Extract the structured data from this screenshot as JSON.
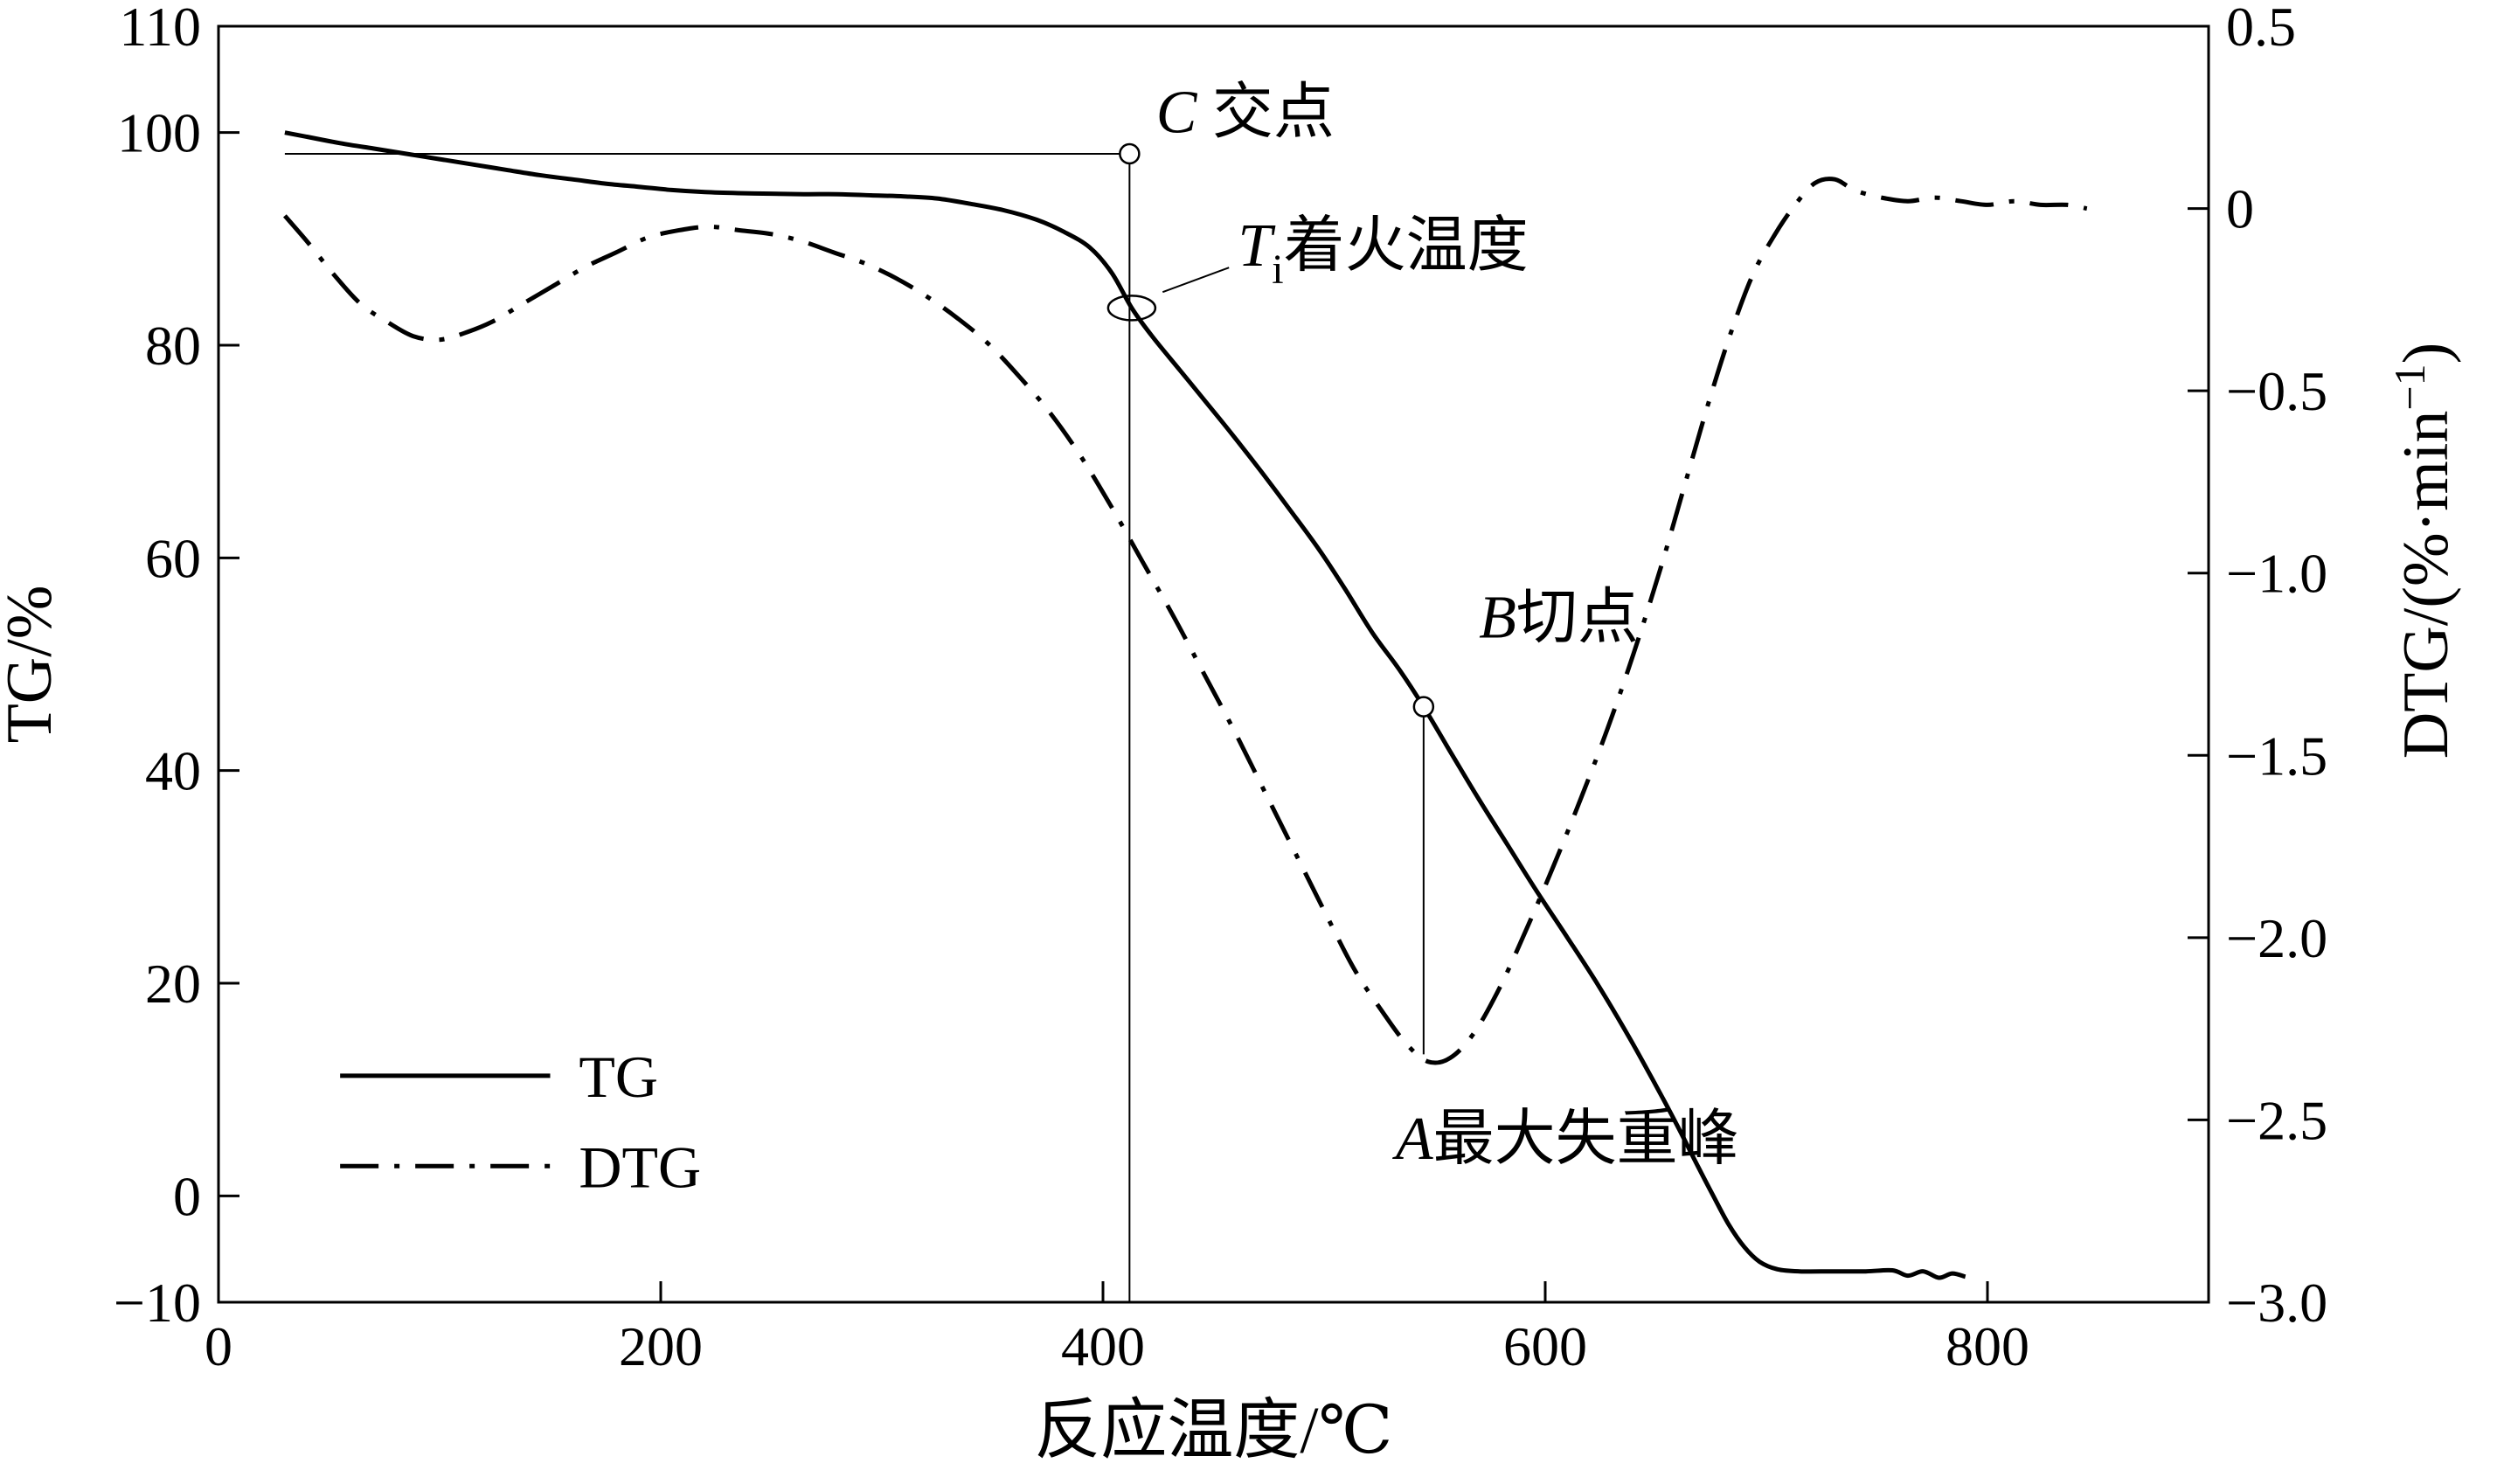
{
  "colors": {
    "line": "#000000",
    "background": "#ffffff"
  },
  "chart_data": {
    "type": "line",
    "title": "",
    "xlabel": "反应温度/℃",
    "ylabel_left": "TG/%",
    "ylabel_right": "DTG/(%·min−1)",
    "legend_position": "lower-left-inside",
    "grid": false,
    "x_axis": {
      "min": 0,
      "max": 900,
      "ticks": [
        0,
        200,
        400,
        600,
        800
      ],
      "tick_labels": [
        "0",
        "200",
        "400",
        "600",
        "800"
      ],
      "title": "反应温度/℃"
    },
    "y_left": {
      "min": -10,
      "max": 110,
      "ticks": [
        110,
        100,
        80,
        60,
        40,
        20,
        0,
        -10
      ],
      "tick_labels": [
        "110",
        "100",
        "80",
        "60",
        "40",
        "20",
        "0",
        "−10"
      ],
      "title": "TG/%"
    },
    "y_right": {
      "min": -3.0,
      "max": 0.5,
      "ticks": [
        0.5,
        0,
        -0.5,
        -1.0,
        -1.5,
        -2.0,
        -2.5,
        -3.0
      ],
      "tick_labels": [
        "0.5",
        "0",
        "−0.5",
        "−1.0",
        "−1.5",
        "−2.0",
        "−2.5",
        "−3.0"
      ],
      "title_parts": [
        {
          "t": "DTG/(%·min"
        },
        {
          "t": "−1",
          "sup": true
        },
        {
          "t": ")"
        }
      ]
    },
    "series": [
      {
        "id": "tg-curve",
        "name": "TG",
        "axis": "left",
        "style": "solid",
        "points": [
          [
            30,
            100
          ],
          [
            40,
            99.6
          ],
          [
            55,
            99.0
          ],
          [
            70,
            98.5
          ],
          [
            85,
            98.0
          ],
          [
            100,
            97.5
          ],
          [
            115,
            97.0
          ],
          [
            130,
            96.5
          ],
          [
            145,
            96.0
          ],
          [
            160,
            95.6
          ],
          [
            175,
            95.2
          ],
          [
            190,
            94.9
          ],
          [
            205,
            94.6
          ],
          [
            220,
            94.4
          ],
          [
            235,
            94.3
          ],
          [
            250,
            94.25
          ],
          [
            265,
            94.2
          ],
          [
            280,
            94.2
          ],
          [
            295,
            94.1
          ],
          [
            310,
            94.0
          ],
          [
            325,
            93.8
          ],
          [
            340,
            93.3
          ],
          [
            355,
            92.7
          ],
          [
            370,
            91.8
          ],
          [
            382,
            90.7
          ],
          [
            394,
            89.2
          ],
          [
            404,
            86.8
          ],
          [
            413,
            83.5
          ],
          [
            422,
            80.9
          ],
          [
            435,
            77.6
          ],
          [
            448,
            74.3
          ],
          [
            460,
            71.2
          ],
          [
            472,
            68.0
          ],
          [
            485,
            64.4
          ],
          [
            498,
            60.7
          ],
          [
            510,
            56.9
          ],
          [
            522,
            52.9
          ],
          [
            534,
            49.5
          ],
          [
            545,
            46.0
          ],
          [
            557,
            41.8
          ],
          [
            570,
            37.3
          ],
          [
            583,
            33.0
          ],
          [
            596,
            28.7
          ],
          [
            610,
            24.3
          ],
          [
            624,
            19.8
          ],
          [
            638,
            14.9
          ],
          [
            650,
            10.4
          ],
          [
            660,
            6.5
          ],
          [
            669,
            2.8
          ],
          [
            676,
            0.0
          ],
          [
            683,
            -2.7
          ],
          [
            690,
            -4.8
          ],
          [
            697,
            -6.2
          ],
          [
            705,
            -6.9
          ],
          [
            715,
            -7.1
          ],
          [
            730,
            -7.1
          ],
          [
            745,
            -7.1
          ],
          [
            757,
            -7.0
          ],
          [
            764,
            -7.5
          ],
          [
            771,
            -7.1
          ],
          [
            778,
            -7.7
          ],
          [
            784,
            -7.3
          ],
          [
            790,
            -7.6
          ]
        ]
      },
      {
        "id": "dtg-curve",
        "name": "DTG",
        "axis": "right",
        "style": "dashdot",
        "points": [
          [
            30,
            -0.02
          ],
          [
            40,
            -0.09
          ],
          [
            52,
            -0.18
          ],
          [
            64,
            -0.26
          ],
          [
            76,
            -0.31
          ],
          [
            88,
            -0.35
          ],
          [
            100,
            -0.36
          ],
          [
            112,
            -0.34
          ],
          [
            124,
            -0.31
          ],
          [
            138,
            -0.26
          ],
          [
            152,
            -0.21
          ],
          [
            166,
            -0.16
          ],
          [
            180,
            -0.12
          ],
          [
            194,
            -0.08
          ],
          [
            208,
            -0.06
          ],
          [
            222,
            -0.05
          ],
          [
            236,
            -0.06
          ],
          [
            250,
            -0.07
          ],
          [
            264,
            -0.09
          ],
          [
            278,
            -0.12
          ],
          [
            292,
            -0.15
          ],
          [
            306,
            -0.19
          ],
          [
            320,
            -0.24
          ],
          [
            334,
            -0.3
          ],
          [
            348,
            -0.37
          ],
          [
            362,
            -0.46
          ],
          [
            376,
            -0.56
          ],
          [
            390,
            -0.68
          ],
          [
            404,
            -0.82
          ],
          [
            418,
            -0.97
          ],
          [
            432,
            -1.12
          ],
          [
            446,
            -1.28
          ],
          [
            460,
            -1.44
          ],
          [
            474,
            -1.61
          ],
          [
            488,
            -1.78
          ],
          [
            502,
            -1.95
          ],
          [
            514,
            -2.09
          ],
          [
            526,
            -2.2
          ],
          [
            537,
            -2.29
          ],
          [
            547,
            -2.34
          ],
          [
            557,
            -2.33
          ],
          [
            568,
            -2.26
          ],
          [
            580,
            -2.13
          ],
          [
            592,
            -1.97
          ],
          [
            604,
            -1.8
          ],
          [
            616,
            -1.62
          ],
          [
            628,
            -1.43
          ],
          [
            640,
            -1.22
          ],
          [
            652,
            -0.99
          ],
          [
            663,
            -0.76
          ],
          [
            674,
            -0.53
          ],
          [
            684,
            -0.34
          ],
          [
            694,
            -0.18
          ],
          [
            704,
            -0.07
          ],
          [
            713,
            0.01
          ],
          [
            722,
            0.07
          ],
          [
            731,
            0.08
          ],
          [
            740,
            0.05
          ],
          [
            752,
            0.03
          ],
          [
            764,
            0.02
          ],
          [
            776,
            0.03
          ],
          [
            788,
            0.02
          ],
          [
            800,
            0.01
          ],
          [
            812,
            0.02
          ],
          [
            824,
            0.01
          ],
          [
            836,
            0.01
          ],
          [
            845,
            0.0
          ]
        ]
      }
    ],
    "guide_lines": [
      {
        "id": "initial-mass-hline",
        "x1": 30,
        "y1": 98,
        "a1": "left",
        "x2": 412,
        "y2": 98,
        "a2": "left"
      },
      {
        "id": "ignition-vline",
        "x1": 412,
        "y1": -10,
        "a1": "left",
        "x2": 412,
        "y2": 98,
        "a2": "left"
      },
      {
        "id": "peak-vline",
        "x1": 545,
        "y1": -2.32,
        "a1": "right",
        "x2": 545,
        "y2": 46,
        "a2": "left"
      },
      {
        "id": "ignition-pointer-line",
        "x1": 427,
        "y1": 85,
        "a1": "left",
        "x2": 457,
        "y2": 87.3,
        "a2": "left"
      }
    ],
    "markers": [
      {
        "id": "point-c-marker",
        "shape": "circle",
        "x": 412,
        "y": 98,
        "axis": "left",
        "r": 11
      },
      {
        "id": "point-b-marker",
        "shape": "circle",
        "x": 545,
        "y": 46,
        "axis": "left",
        "r": 11
      },
      {
        "id": "ignition-ellipse",
        "shape": "ellipse",
        "x": 413,
        "y": 83.5,
        "axis": "left",
        "rx": 27,
        "ry": 14
      }
    ],
    "annotations": [
      {
        "id": "point-c-label",
        "x": 424,
        "y": 100,
        "axis": "left",
        "anchor": "start",
        "size": 70,
        "parts": [
          {
            "t": "C",
            "italic": true
          },
          {
            "t": " 交点"
          }
        ]
      },
      {
        "id": "ignition-label",
        "x": 461,
        "y": 87.5,
        "axis": "left",
        "anchor": "start",
        "size": 70,
        "parts": [
          {
            "t": "T",
            "italic": true
          },
          {
            "t": "i",
            "sub": true
          },
          {
            "t": "着火温度"
          }
        ]
      },
      {
        "id": "point-b-label",
        "x": 570,
        "y": 52.5,
        "axis": "left",
        "anchor": "start",
        "size": 70,
        "parts": [
          {
            "t": "B",
            "italic": true
          },
          {
            "t": "切点"
          }
        ]
      },
      {
        "id": "peak-a-label",
        "x": 610,
        "y": 3.5,
        "axis": "left",
        "anchor": "middle",
        "size": 70,
        "parts": [
          {
            "t": "A",
            "italic": true
          },
          {
            "t": "最大失重峰"
          }
        ]
      }
    ],
    "legend": {
      "x_line": [
        55,
        150
      ],
      "x_text": 163,
      "rows": [
        {
          "label": "TG",
          "style": "solid",
          "y": 11.3
        },
        {
          "label": "DTG",
          "style": "dashdot",
          "y": 2.8
        }
      ]
    }
  }
}
